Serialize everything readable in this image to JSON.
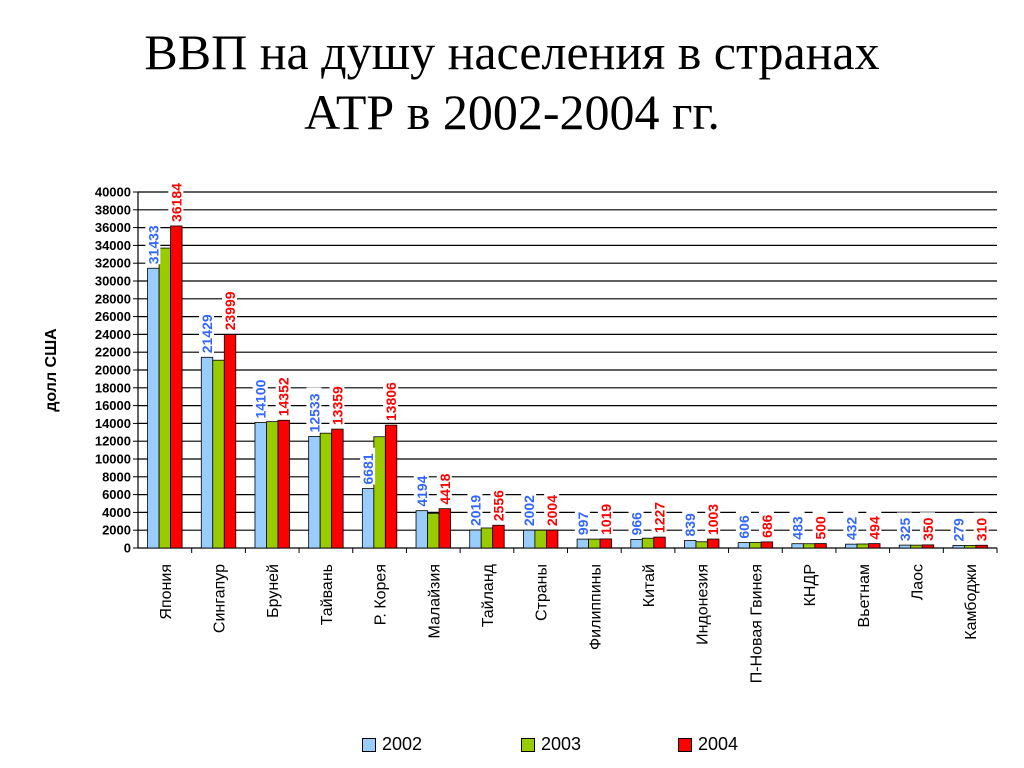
{
  "slide": {
    "title_line1": "ВВП на душу населения в странах",
    "title_line2": "АТР в 2002-2004 гг."
  },
  "colors": {
    "series_2002": "#99ccff",
    "series_2003": "#99cc00",
    "series_2004": "#ff0000",
    "label_2002": "#3366ff",
    "label_2004": "#ff0000"
  },
  "chart_data": {
    "type": "bar",
    "title": "",
    "ylabel": "долл США",
    "xlabel": "",
    "ylim": [
      0,
      40000
    ],
    "ytick_step": 2000,
    "grid": true,
    "legend_position": "bottom",
    "categories": [
      "Япония",
      "Сингапур",
      "Бруней",
      "Тайвань",
      "Р. Корея",
      "Малайзия",
      "Тайланд",
      "Страны",
      "Филиппины",
      "Китай",
      "Индонезия",
      "П-Новая Гвинея",
      "КНДР",
      "Вьетнам",
      "Лаос",
      "Камбоджи"
    ],
    "series": [
      {
        "name": "2002",
        "values": [
          31433,
          21429,
          14100,
          12533,
          6681,
          4194,
          2019,
          2002,
          997,
          966,
          839,
          606,
          483,
          432,
          325,
          279
        ],
        "labeled": true
      },
      {
        "name": "2003",
        "values": [
          33700,
          21100,
          14200,
          12900,
          12500,
          3900,
          2250,
          2000,
          1000,
          1100,
          700,
          620,
          480,
          450,
          320,
          280
        ],
        "labeled": false
      },
      {
        "name": "2004",
        "values": [
          36184,
          23999,
          14352,
          13359,
          13806,
          4418,
          2556,
          2004,
          1019,
          1227,
          1003,
          686,
          500,
          494,
          350,
          310
        ],
        "labeled": true
      }
    ]
  }
}
